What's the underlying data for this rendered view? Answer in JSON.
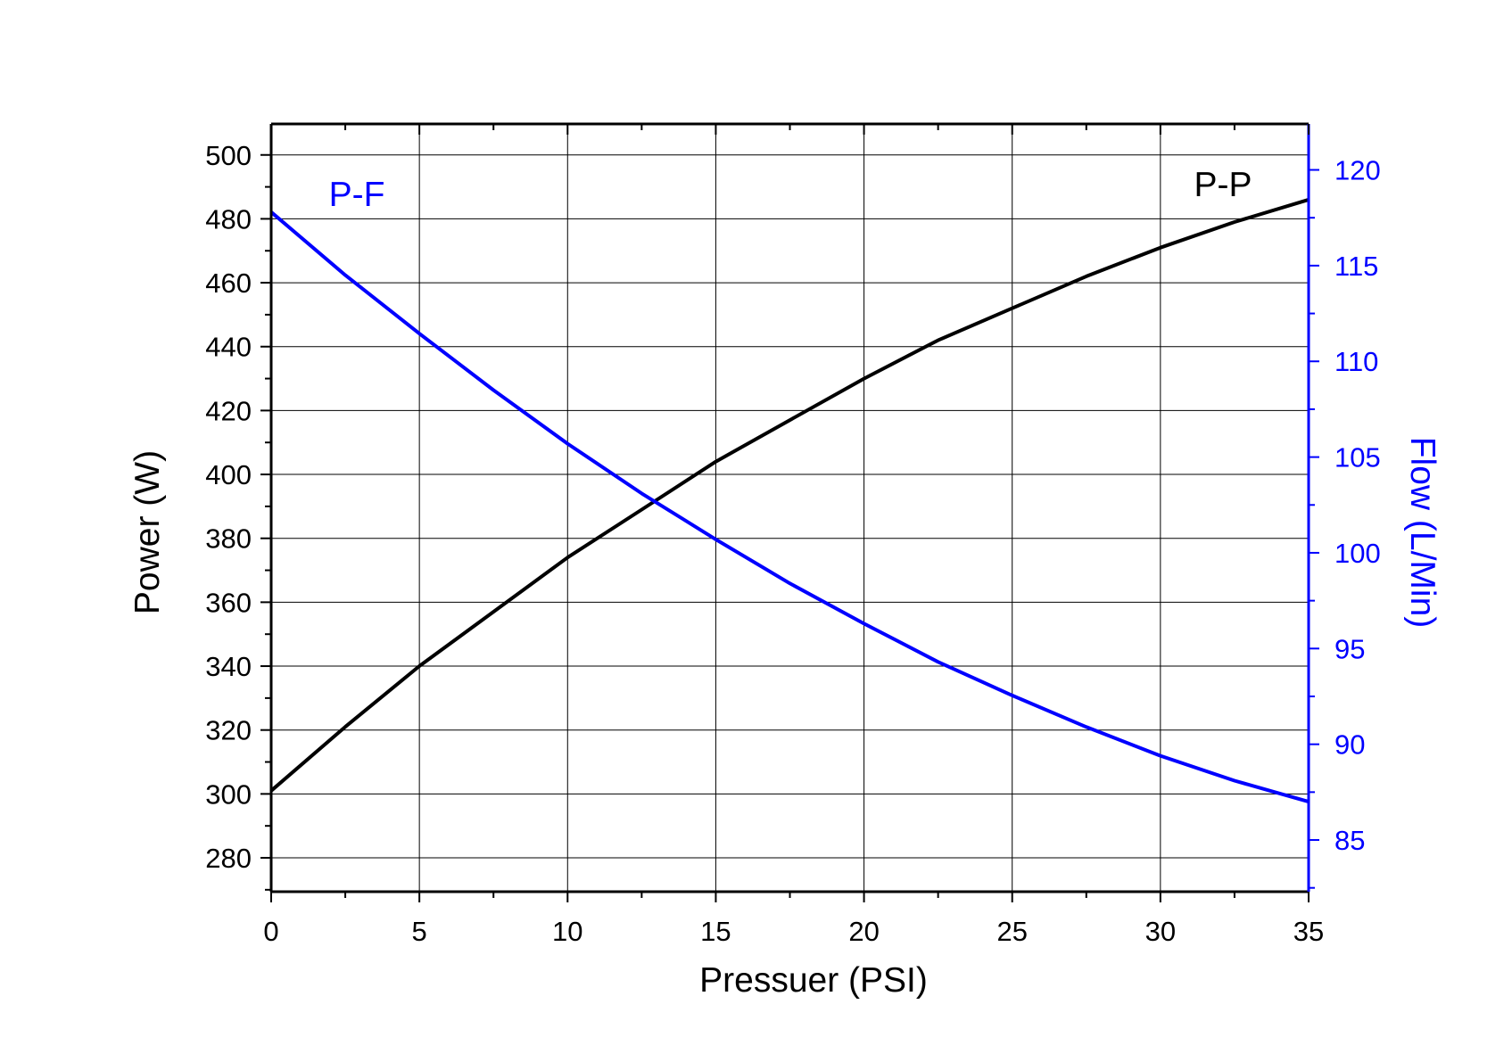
{
  "chart_data": {
    "type": "line",
    "title": "",
    "xlabel": "Pressuer (PSI)",
    "ylabel": "Power (W)",
    "y2label": "Flow (L/Min)",
    "xlim": [
      0,
      35
    ],
    "ylim": [
      269.4,
      509.7
    ],
    "y2lim": [
      82.3,
      122.4
    ],
    "xticks": [
      0,
      5,
      10,
      15,
      20,
      25,
      30,
      35
    ],
    "yticks": [
      280,
      300,
      320,
      340,
      360,
      380,
      400,
      420,
      440,
      460,
      480,
      500
    ],
    "y2ticks": [
      85,
      90,
      95,
      100,
      105,
      110,
      115,
      120
    ],
    "grid": true,
    "series": [
      {
        "name": "P-P",
        "axis": "left",
        "color": "#000000",
        "x": [
          0,
          2.5,
          5,
          7.5,
          10,
          12.5,
          15,
          17.5,
          20,
          22.5,
          25,
          27.5,
          30,
          32.5,
          35
        ],
        "values": [
          301,
          321,
          340,
          357,
          374,
          389,
          404,
          417,
          430,
          442,
          452,
          462,
          471,
          479,
          486
        ]
      },
      {
        "name": "P-F",
        "axis": "right",
        "color": "#0000ff",
        "x": [
          0,
          2.5,
          5,
          7.5,
          10,
          12.5,
          15,
          17.5,
          20,
          22.5,
          25,
          27.5,
          30,
          32.5,
          35
        ],
        "values": [
          117.8,
          114.5,
          111.45,
          108.5,
          105.7,
          103.1,
          100.7,
          98.4,
          96.3,
          94.3,
          92.55,
          90.9,
          89.4,
          88.1,
          87.0
        ]
      }
    ],
    "annotations": [
      {
        "text": "P-F",
        "color": "#0000ff"
      },
      {
        "text": "P-P",
        "color": "#000000"
      }
    ]
  }
}
